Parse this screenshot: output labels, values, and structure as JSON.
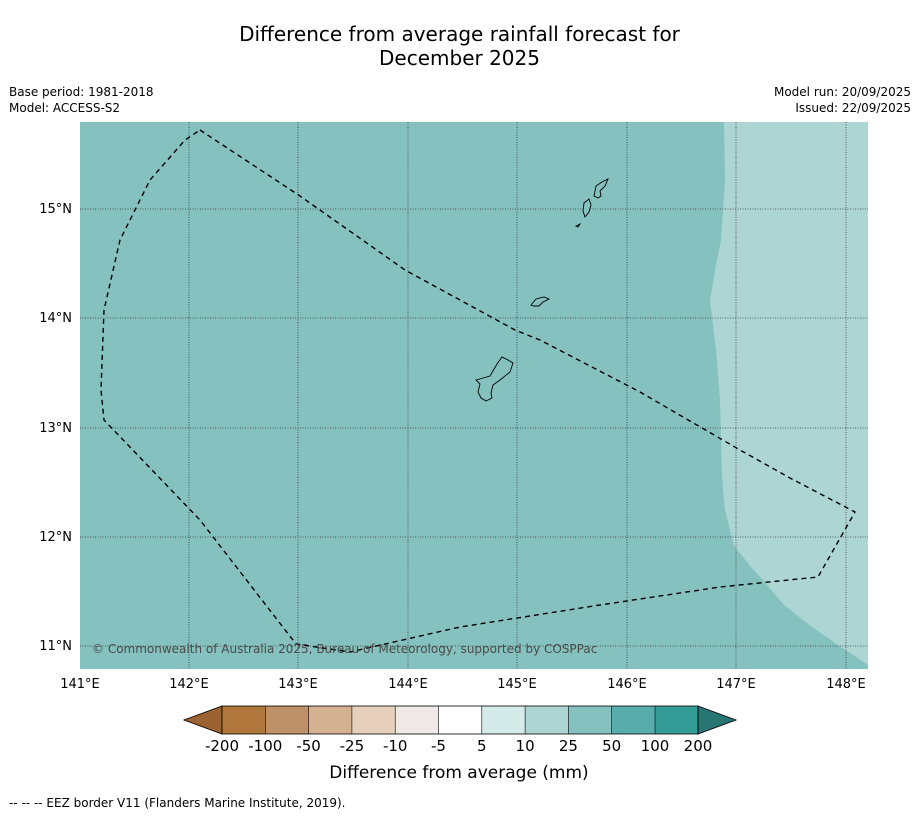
{
  "title": {
    "line1": "Difference from average rainfall forecast for",
    "line2": "December 2025"
  },
  "base_period": "Base period: 1981-2018",
  "model": "Model: ACCESS-S2",
  "model_run": "Model run: 20/09/2025",
  "issued": "Issued: 22/09/2025",
  "copyright": "© Commonwealth of Australia 2025, Bureau of Meteorology, supported by COSPPac",
  "footer": "--  --  -- EEZ border V11 (Flanders Marine Institute, 2019).",
  "map": {
    "lon_labels": [
      "141°E",
      "142°E",
      "143°E",
      "144°E",
      "145°E",
      "146°E",
      "147°E",
      "148°E"
    ],
    "lat_labels": [
      "15°N",
      "14°N",
      "13°N",
      "12°N",
      "11°N"
    ],
    "regions": [
      {
        "name": "25 to 50 mm above average",
        "color": "#85c1bf"
      },
      {
        "name": "10 to 25 mm above average",
        "color": "#acd5d4"
      }
    ],
    "islands": [
      "Saipan",
      "Tinian",
      "Aguijan",
      "Rota",
      "Guam"
    ],
    "eez_border_style": "dashed black"
  },
  "legend": {
    "title": "Difference from average (mm)",
    "tick_labels": [
      "-200",
      "-100",
      "-50",
      "-25",
      "-10",
      "-5",
      "5",
      "10",
      "25",
      "50",
      "100",
      "200"
    ],
    "colors": [
      "#9a6331",
      "#b0773c",
      "#bf9168",
      "#d4b191",
      "#e7d1bd",
      "#eee9e6",
      "#ffffff",
      "#d5ebea",
      "#acd5d4",
      "#85c1bf",
      "#58acab",
      "#349b97",
      "#287673"
    ]
  }
}
